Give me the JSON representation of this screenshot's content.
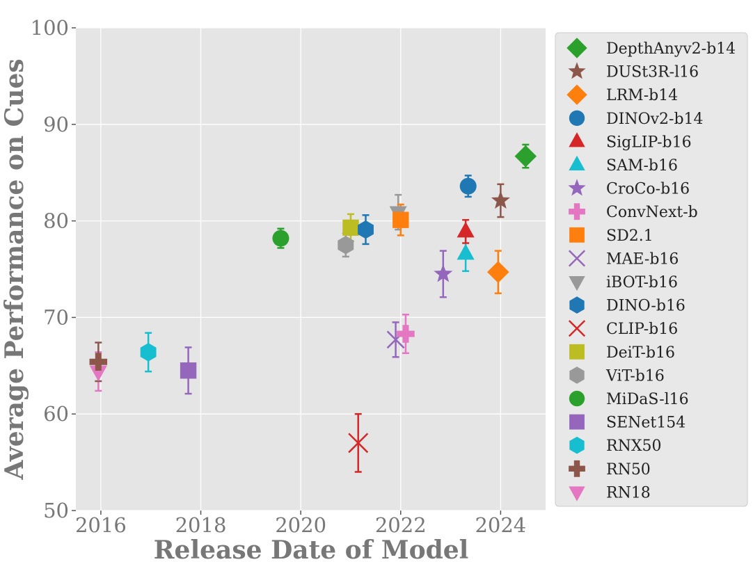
{
  "chart_data": {
    "type": "scatter",
    "xlabel": "Release Date of Model",
    "ylabel": "Average Performance on Cues",
    "xlim": [
      2015.5,
      2024.9
    ],
    "ylim": [
      50,
      100
    ],
    "xticks": [
      "2016",
      "2018",
      "2020",
      "2022",
      "2024"
    ],
    "xtick_values": [
      2016,
      2018,
      2020,
      2022,
      2024
    ],
    "yticks": [
      "50",
      "60",
      "70",
      "80",
      "90",
      "100"
    ],
    "ytick_values": [
      50,
      60,
      70,
      80,
      90,
      100
    ],
    "grid": true,
    "legend_position": "right",
    "error_bars": true,
    "series": [
      {
        "name": "DepthAnyv2-b14",
        "marker": "diamond",
        "color": "#2ca02c",
        "x": 2024.5,
        "y": 86.7,
        "err": 1.2
      },
      {
        "name": "DUSt3R-l16",
        "marker": "star",
        "color": "#8c564b",
        "x": 2024.0,
        "y": 82.1,
        "err": 1.7
      },
      {
        "name": "LRM-b14",
        "marker": "diamond",
        "color": "#ff7f0e",
        "x": 2023.95,
        "y": 74.7,
        "err": 2.2
      },
      {
        "name": "DINOv2-b14",
        "marker": "circle",
        "color": "#1f77b4",
        "x": 2023.35,
        "y": 83.6,
        "err": 1.1
      },
      {
        "name": "SigLIP-b16",
        "marker": "triangle-up",
        "color": "#d62728",
        "x": 2023.3,
        "y": 78.9,
        "err": 1.2
      },
      {
        "name": "SAM-b16",
        "marker": "triangle-up",
        "color": "#17becf",
        "x": 2023.3,
        "y": 76.6,
        "err": 1.8
      },
      {
        "name": "CroCo-b16",
        "marker": "star",
        "color": "#9467bd",
        "x": 2022.85,
        "y": 74.5,
        "err": 2.4
      },
      {
        "name": "ConvNext-b",
        "marker": "plus",
        "color": "#e377c2",
        "x": 2022.1,
        "y": 68.3,
        "err": 2.0
      },
      {
        "name": "SD2.1",
        "marker": "square",
        "color": "#ff7f0e",
        "x": 2022.0,
        "y": 80.1,
        "err": 1.6
      },
      {
        "name": "MAE-b16",
        "marker": "x",
        "color": "#9467bd",
        "x": 2021.9,
        "y": 67.7,
        "err": 1.8
      },
      {
        "name": "iBOT-b16",
        "marker": "triangle-down",
        "color": "#999999",
        "x": 2021.95,
        "y": 80.9,
        "err": 1.8
      },
      {
        "name": "DINO-b16",
        "marker": "hexagon",
        "color": "#1f77b4",
        "x": 2021.3,
        "y": 79.1,
        "err": 1.5
      },
      {
        "name": "CLIP-b16",
        "marker": "x",
        "color": "#d62728",
        "x": 2021.15,
        "y": 57.0,
        "err": 3.0
      },
      {
        "name": "DeiT-b16",
        "marker": "square",
        "color": "#bcbd22",
        "x": 2021.0,
        "y": 79.3,
        "err": 1.4
      },
      {
        "name": "ViT-b16",
        "marker": "hexagon",
        "color": "#999999",
        "x": 2020.9,
        "y": 77.5,
        "err": 1.2
      },
      {
        "name": "MiDaS-l16",
        "marker": "circle",
        "color": "#2ca02c",
        "x": 2019.6,
        "y": 78.2,
        "err": 1.0
      },
      {
        "name": "SENet154",
        "marker": "square",
        "color": "#9467bd",
        "x": 2017.75,
        "y": 64.5,
        "err": 2.4
      },
      {
        "name": "RNX50",
        "marker": "hexagon",
        "color": "#17becf",
        "x": 2016.95,
        "y": 66.4,
        "err": 2.0
      },
      {
        "name": "RN50",
        "marker": "plus",
        "color": "#8c564b",
        "x": 2015.95,
        "y": 65.4,
        "err": 2.0
      },
      {
        "name": "RN18",
        "marker": "triangle-down",
        "color": "#e377c2",
        "x": 2015.95,
        "y": 64.4,
        "err": 2.0
      }
    ]
  }
}
